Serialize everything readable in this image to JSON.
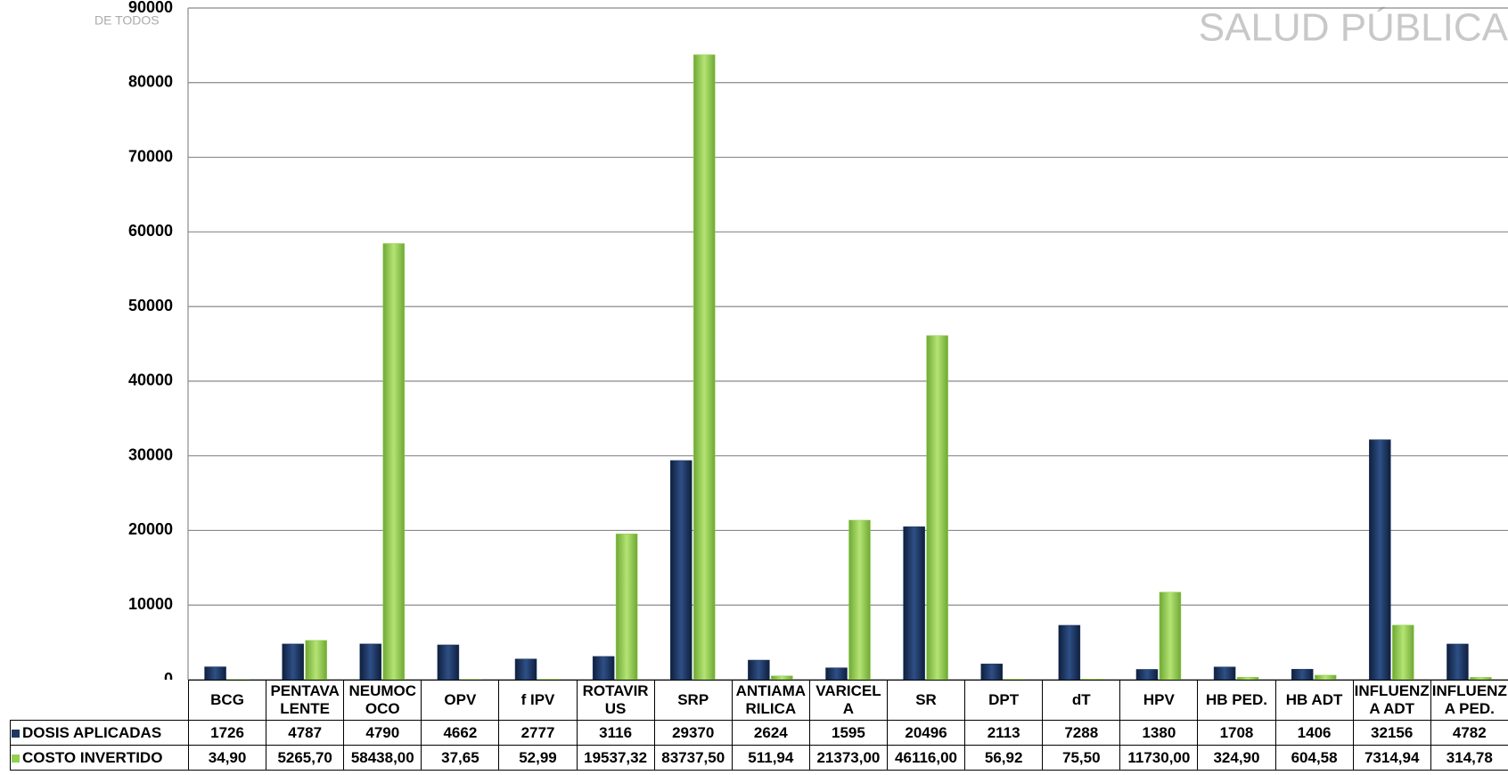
{
  "header": {
    "logo_text": "DE TODOS",
    "watermark": "SALUD PÚBLICA"
  },
  "chart_data": {
    "type": "bar",
    "categories": [
      "BCG",
      "PENTAVALENTE",
      "NEUMOCOCO",
      "OPV",
      "f IPV",
      "ROTAVIRUS",
      "SRP",
      "ANTIAMARILICA",
      "VARICELA",
      "SR",
      "DPT",
      "dT",
      "HPV",
      "HB PED.",
      "HB ADT",
      "INFLUENZA ADT",
      "INFLUENZA PED."
    ],
    "series": [
      {
        "name": "DOSIS APLICADAS",
        "color": "#1f3864",
        "values": [
          1726,
          4787,
          4790,
          4662,
          2777,
          3116,
          29370,
          2624,
          1595,
          20496,
          2113,
          7288,
          1380,
          1708,
          1406,
          32156,
          4782
        ]
      },
      {
        "name": "COSTO INVERTIDO",
        "color": "#92d050",
        "values": [
          34.9,
          5265.7,
          58438.0,
          37.65,
          52.99,
          19537.32,
          83737.5,
          511.94,
          21373.0,
          46116.0,
          56.92,
          75.5,
          11730.0,
          324.9,
          604.58,
          7314.94,
          314.78
        ],
        "value_labels": [
          "34,90",
          "5265,70",
          "58438,00",
          "37,65",
          "52,99",
          "19537,32",
          "83737,50",
          "511,94",
          "21373,00",
          "46116,00",
          "56,92",
          "75,50",
          "11730,00",
          "324,90",
          "604,58",
          "7314,94",
          "314,78"
        ]
      }
    ],
    "ylim": [
      0,
      90000
    ],
    "yticks": [
      0,
      10000,
      20000,
      30000,
      40000,
      50000,
      60000,
      70000,
      80000,
      90000
    ],
    "grid": true
  }
}
